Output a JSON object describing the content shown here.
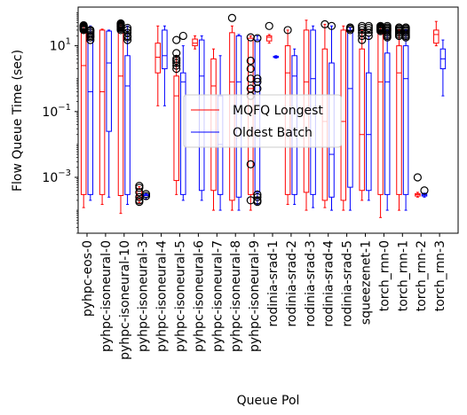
{
  "chart_data": {
    "type": "box",
    "xlabel": "Queue Pol",
    "ylabel": "Flow Queue Time (sec)",
    "yscale": "log",
    "ylim": [
      2e-05,
      150
    ],
    "yticks": [
      {
        "value": 0.001,
        "base": "10",
        "exp": "−3"
      },
      {
        "value": 0.1,
        "base": "10",
        "exp": "−1"
      },
      {
        "value": 10,
        "base": "10",
        "exp": "1"
      }
    ],
    "categories": [
      "pyhpc-eos-0",
      "pyhpc-isoneural-0",
      "pyhpc-isoneural-10",
      "pyhpc-isoneural-3",
      "pyhpc-isoneural-4",
      "pyhpc-isoneural-5",
      "pyhpc-isoneural-6",
      "pyhpc-isoneural-7",
      "pyhpc-isoneural-8",
      "pyhpc-isoneural-9",
      "rodinia-srad-1",
      "rodinia-srad-2",
      "rodinia-srad-3",
      "rodinia-srad-4",
      "rodinia-srad-5",
      "squeezenet-1",
      "torch_rnn-0",
      "torch_rnn-1",
      "torch_rnn-2",
      "torch_rnn-3"
    ],
    "legend": {
      "location": "center-right"
    },
    "series": [
      {
        "name": "MQFQ Longest",
        "color": "#ff0000",
        "boxes": [
          {
            "wlo": 0.00012,
            "q1": 0.0003,
            "med": 2.5,
            "q3": 25,
            "whi": 45,
            "fliers": [
              30,
              32,
              34,
              36,
              38,
              40,
              42
            ]
          },
          {
            "wlo": 0.00015,
            "q1": 0.0003,
            "med": 0.4,
            "q3": 30,
            "whi": 32,
            "fliers": []
          },
          {
            "wlo": 8e-05,
            "q1": 0.00028,
            "med": 1.2,
            "q3": 30,
            "whi": 50,
            "fliers": [
              30,
              33,
              36,
              38,
              40,
              42,
              44,
              46,
              48
            ]
          },
          {
            "wlo": 0.00017,
            "q1": 0.00022,
            "med": 0.00028,
            "q3": 0.00045,
            "whi": 0.00052,
            "fliers": [
              0.00018,
              0.0002,
              0.00025,
              0.00035,
              0.00048,
              0.00055
            ]
          },
          {
            "wlo": 0.15,
            "q1": 1.5,
            "med": 4.5,
            "q3": 12,
            "whi": 40,
            "fliers": []
          },
          {
            "wlo": 0.0003,
            "q1": 0.0008,
            "med": 0.3,
            "q3": 1.2,
            "whi": 5,
            "fliers": [
              2,
              2.5,
              3,
              3.5,
              4,
              6,
              15
            ]
          },
          {
            "wlo": 8,
            "q1": 10,
            "med": 12,
            "q3": 16,
            "whi": 20,
            "fliers": []
          },
          {
            "wlo": 0.0001,
            "q1": 0.0004,
            "med": 0.6,
            "q3": 4,
            "whi": 8,
            "fliers": []
          },
          {
            "wlo": 0.0001,
            "q1": 0.0002,
            "med": 0.8,
            "q3": 25,
            "whi": 40,
            "fliers": [
              70
            ]
          },
          {
            "wlo": 0.0001,
            "q1": 0.0003,
            "med": 0.5,
            "q3": 17,
            "whi": 20,
            "fliers": [
              0.0002,
              0.0025,
              0.3,
              0.5,
              1,
              2,
              3.5,
              18
            ]
          },
          {
            "wlo": 12,
            "q1": 14,
            "med": 18,
            "q3": 20,
            "whi": 22,
            "fliers": [
              40
            ]
          },
          {
            "wlo": 0.00015,
            "q1": 0.0003,
            "med": 1.5,
            "q3": 10,
            "whi": 30,
            "fliers": [
              30
            ]
          },
          {
            "wlo": 0.0001,
            "q1": 0.00035,
            "med": 0.8,
            "q3": 30,
            "whi": 60,
            "fliers": []
          },
          {
            "wlo": 0.00012,
            "q1": 0.0002,
            "med": 0.05,
            "q3": 8,
            "whi": 45,
            "fliers": [
              45
            ]
          },
          {
            "wlo": 0.0001,
            "q1": 0.0002,
            "med": 0.05,
            "q3": 30,
            "whi": 40,
            "fliers": []
          },
          {
            "wlo": 0.0002,
            "q1": 0.0004,
            "med": 0.02,
            "q3": 8,
            "whi": 30,
            "fliers": [
              15,
              20,
              25,
              30,
              35,
              40
            ]
          },
          {
            "wlo": 6e-05,
            "q1": 0.0003,
            "med": 0.8,
            "q3": 25,
            "whi": 35,
            "fliers": [
              28,
              30,
              32,
              34,
              36,
              38,
              40
            ]
          },
          {
            "wlo": 0.0001,
            "q1": 0.0003,
            "med": 1.5,
            "q3": 10,
            "whi": 30,
            "fliers": [
              20,
              22,
              25,
              28,
              30,
              33,
              36
            ]
          },
          {
            "wlo": 0.00025,
            "q1": 0.00027,
            "med": 0.0003,
            "q3": 0.00032,
            "whi": 0.00035,
            "fliers": [
              0.001
            ]
          },
          {
            "wlo": 10,
            "q1": 12,
            "med": 22,
            "q3": 30,
            "whi": 55,
            "fliers": []
          }
        ]
      },
      {
        "name": "Oldest Batch",
        "color": "#0000ff",
        "boxes": [
          {
            "wlo": 0.0002,
            "q1": 0.0003,
            "med": 0.4,
            "q3": 25,
            "whi": 40,
            "fliers": [
              15,
              18,
              20,
              22,
              25,
              28,
              30
            ]
          },
          {
            "wlo": 0.00025,
            "q1": 0.025,
            "med": 3,
            "q3": 28,
            "whi": 30,
            "fliers": []
          },
          {
            "wlo": 0.00015,
            "q1": 0.0003,
            "med": 0.6,
            "q3": 5,
            "whi": 40,
            "fliers": [
              15,
              18,
              20,
              25,
              30,
              35
            ]
          },
          {
            "wlo": 0.00022,
            "q1": 0.00025,
            "med": 0.00028,
            "q3": 0.0003,
            "whi": 0.00032,
            "fliers": [
              0.00027,
              0.00031
            ]
          },
          {
            "wlo": 0.15,
            "q1": 2,
            "med": 5,
            "q3": 30,
            "whi": 40,
            "fliers": []
          },
          {
            "wlo": 0.0002,
            "q1": 0.0003,
            "med": 0.8,
            "q3": 1.5,
            "whi": 10,
            "fliers": [
              20
            ]
          },
          {
            "wlo": 0.0002,
            "q1": 0.0004,
            "med": 1.2,
            "q3": 15,
            "whi": 20,
            "fliers": []
          },
          {
            "wlo": 0.0001,
            "q1": 0.0003,
            "med": 0.01,
            "q3": 0.3,
            "whi": 5,
            "fliers": []
          },
          {
            "wlo": 0.0001,
            "q1": 0.00025,
            "med": 0.8,
            "q3": 20,
            "whi": 22,
            "fliers": []
          },
          {
            "wlo": 0.00015,
            "q1": 0.00035,
            "med": 0.4,
            "q3": 15,
            "whi": 20,
            "fliers": [
              0.00018,
              0.0002,
              0.00025,
              0.0003,
              0.5,
              0.8,
              1,
              17
            ]
          },
          {
            "wlo": 4.2,
            "q1": 4.4,
            "med": 4.6,
            "q3": 4.8,
            "whi": 5,
            "fliers": []
          },
          {
            "wlo": 0.00015,
            "q1": 0.0003,
            "med": 1.2,
            "q3": 5,
            "whi": 8,
            "fliers": []
          },
          {
            "wlo": 0.00012,
            "q1": 0.0003,
            "med": 1,
            "q3": 30,
            "whi": 40,
            "fliers": []
          },
          {
            "wlo": 0.0001,
            "q1": 0.00025,
            "med": 0.005,
            "q3": 3,
            "whi": 40,
            "fliers": [
              40
            ]
          },
          {
            "wlo": 0.0001,
            "q1": 0.0005,
            "med": 0.5,
            "q3": 30,
            "whi": 35,
            "fliers": [
              30,
              33,
              36
            ]
          },
          {
            "wlo": 0.0002,
            "q1": 0.0004,
            "med": 0.02,
            "q3": 1.5,
            "whi": 20,
            "fliers": [
              20,
              25,
              30,
              35,
              40
            ]
          },
          {
            "wlo": 0.0001,
            "q1": 0.0003,
            "med": 0.8,
            "q3": 6,
            "whi": 30,
            "fliers": [
              18,
              20,
              22,
              25,
              28,
              30,
              33,
              36,
              40
            ]
          },
          {
            "wlo": 0.0001,
            "q1": 0.0003,
            "med": 1,
            "q3": 10,
            "whi": 30,
            "fliers": [
              18,
              20,
              22,
              25,
              28,
              30,
              33,
              36
            ]
          },
          {
            "wlo": 0.00025,
            "q1": 0.00027,
            "med": 0.00029,
            "q3": 0.00031,
            "whi": 0.00033,
            "fliers": [
              0.0004
            ]
          },
          {
            "wlo": 0.3,
            "q1": 2,
            "med": 4,
            "q3": 8,
            "whi": 15,
            "fliers": []
          }
        ]
      }
    ]
  }
}
